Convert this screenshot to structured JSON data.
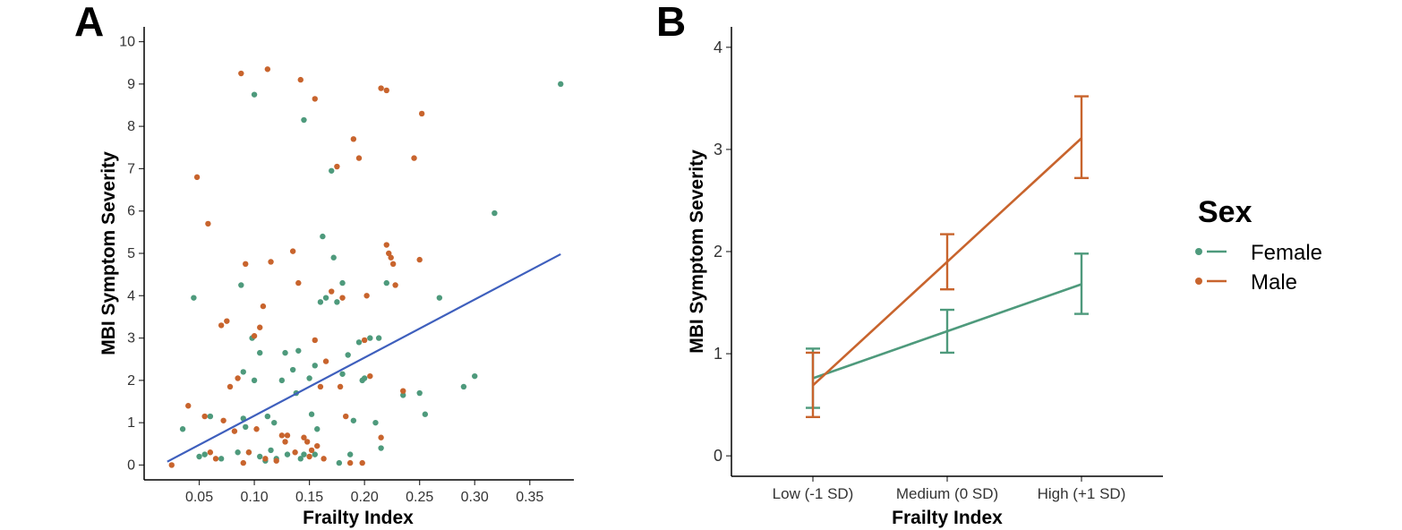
{
  "chart_data": [
    {
      "panel": "A",
      "type": "scatter",
      "xlabel": "Frailty Index",
      "ylabel": "MBI Symptom Severity",
      "xlim": [
        0,
        0.39
      ],
      "ylim": [
        -0.35,
        10.35
      ],
      "xticks": [
        "0.05",
        "0.10",
        "0.15",
        "0.20",
        "0.25",
        "0.30",
        "0.35"
      ],
      "yticks": [
        "0",
        "1",
        "2",
        "3",
        "4",
        "5",
        "6",
        "7",
        "8",
        "9",
        "10"
      ],
      "grid": false,
      "series": [
        {
          "name": "Female",
          "color": "#4e9a7c",
          "points": [
            [
              0.035,
              0.85
            ],
            [
              0.045,
              3.95
            ],
            [
              0.05,
              0.2
            ],
            [
              0.055,
              0.25
            ],
            [
              0.06,
              1.15
            ],
            [
              0.07,
              0.15
            ],
            [
              0.085,
              0.3
            ],
            [
              0.088,
              4.25
            ],
            [
              0.09,
              1.1
            ],
            [
              0.09,
              2.2
            ],
            [
              0.092,
              0.9
            ],
            [
              0.095,
              0.3
            ],
            [
              0.098,
              3.0
            ],
            [
              0.1,
              8.75
            ],
            [
              0.1,
              2.0
            ],
            [
              0.105,
              2.65
            ],
            [
              0.105,
              0.2
            ],
            [
              0.11,
              0.1
            ],
            [
              0.112,
              1.15
            ],
            [
              0.115,
              0.35
            ],
            [
              0.118,
              1.0
            ],
            [
              0.12,
              0.15
            ],
            [
              0.125,
              2.0
            ],
            [
              0.128,
              2.65
            ],
            [
              0.13,
              0.25
            ],
            [
              0.135,
              2.25
            ],
            [
              0.138,
              1.7
            ],
            [
              0.14,
              2.7
            ],
            [
              0.142,
              0.15
            ],
            [
              0.145,
              8.15
            ],
            [
              0.145,
              0.25
            ],
            [
              0.15,
              2.05
            ],
            [
              0.152,
              1.2
            ],
            [
              0.155,
              2.35
            ],
            [
              0.155,
              0.25
            ],
            [
              0.157,
              0.85
            ],
            [
              0.16,
              3.85
            ],
            [
              0.162,
              5.4
            ],
            [
              0.165,
              3.95
            ],
            [
              0.17,
              6.95
            ],
            [
              0.172,
              4.9
            ],
            [
              0.175,
              3.85
            ],
            [
              0.177,
              0.05
            ],
            [
              0.18,
              4.3
            ],
            [
              0.18,
              2.15
            ],
            [
              0.185,
              2.6
            ],
            [
              0.187,
              0.25
            ],
            [
              0.19,
              1.05
            ],
            [
              0.195,
              2.9
            ],
            [
              0.198,
              2.0
            ],
            [
              0.2,
              2.05
            ],
            [
              0.205,
              3.0
            ],
            [
              0.21,
              1.0
            ],
            [
              0.213,
              3.0
            ],
            [
              0.215,
              0.4
            ],
            [
              0.22,
              4.3
            ],
            [
              0.235,
              1.65
            ],
            [
              0.25,
              1.7
            ],
            [
              0.255,
              1.2
            ],
            [
              0.268,
              3.95
            ],
            [
              0.29,
              1.85
            ],
            [
              0.3,
              2.1
            ],
            [
              0.318,
              5.95
            ],
            [
              0.378,
              9.0
            ]
          ]
        },
        {
          "name": "Male",
          "color": "#c8642d",
          "points": [
            [
              0.025,
              0.0
            ],
            [
              0.04,
              1.4
            ],
            [
              0.048,
              6.8
            ],
            [
              0.055,
              1.15
            ],
            [
              0.058,
              5.7
            ],
            [
              0.06,
              0.3
            ],
            [
              0.065,
              0.15
            ],
            [
              0.07,
              3.3
            ],
            [
              0.072,
              1.05
            ],
            [
              0.075,
              3.4
            ],
            [
              0.078,
              1.85
            ],
            [
              0.082,
              0.8
            ],
            [
              0.085,
              2.05
            ],
            [
              0.088,
              9.25
            ],
            [
              0.09,
              0.05
            ],
            [
              0.092,
              4.75
            ],
            [
              0.095,
              0.3
            ],
            [
              0.1,
              3.05
            ],
            [
              0.102,
              0.85
            ],
            [
              0.105,
              3.25
            ],
            [
              0.108,
              3.75
            ],
            [
              0.11,
              0.15
            ],
            [
              0.112,
              9.35
            ],
            [
              0.115,
              4.8
            ],
            [
              0.12,
              0.1
            ],
            [
              0.125,
              0.7
            ],
            [
              0.128,
              0.55
            ],
            [
              0.13,
              0.7
            ],
            [
              0.135,
              5.05
            ],
            [
              0.137,
              0.3
            ],
            [
              0.14,
              4.3
            ],
            [
              0.142,
              9.1
            ],
            [
              0.145,
              0.65
            ],
            [
              0.148,
              0.55
            ],
            [
              0.15,
              0.2
            ],
            [
              0.152,
              0.35
            ],
            [
              0.155,
              8.65
            ],
            [
              0.155,
              2.95
            ],
            [
              0.157,
              0.45
            ],
            [
              0.16,
              1.85
            ],
            [
              0.163,
              0.15
            ],
            [
              0.165,
              2.45
            ],
            [
              0.17,
              4.1
            ],
            [
              0.175,
              7.05
            ],
            [
              0.178,
              1.85
            ],
            [
              0.18,
              3.95
            ],
            [
              0.183,
              1.15
            ],
            [
              0.187,
              0.05
            ],
            [
              0.19,
              7.7
            ],
            [
              0.195,
              7.25
            ],
            [
              0.198,
              0.05
            ],
            [
              0.2,
              2.95
            ],
            [
              0.202,
              4.0
            ],
            [
              0.205,
              2.1
            ],
            [
              0.215,
              0.65
            ],
            [
              0.215,
              8.9
            ],
            [
              0.22,
              8.85
            ],
            [
              0.22,
              5.2
            ],
            [
              0.222,
              5.0
            ],
            [
              0.224,
              4.9
            ],
            [
              0.226,
              4.75
            ],
            [
              0.228,
              4.25
            ],
            [
              0.235,
              1.75
            ],
            [
              0.245,
              7.25
            ],
            [
              0.25,
              4.85
            ],
            [
              0.252,
              8.3
            ]
          ]
        }
      ],
      "fit_line": {
        "color": "#3e5fbd",
        "x": [
          0.021,
          0.378
        ],
        "y": [
          0.08,
          4.98
        ]
      }
    },
    {
      "panel": "B",
      "type": "line",
      "xlabel": "Frailty Index",
      "ylabel": "MBI Symptom Severity",
      "categories": [
        "Low (-1 SD)",
        "Medium (0 SD)",
        "High (+1 SD)"
      ],
      "ylim": [
        -0.2,
        4.2
      ],
      "yticks": [
        "0",
        "1",
        "2",
        "3",
        "4"
      ],
      "grid": false,
      "series": [
        {
          "name": "Female",
          "color": "#4e9a7c",
          "values": [
            0.76,
            1.22,
            1.68
          ],
          "lower": [
            0.47,
            1.01,
            1.39
          ],
          "upper": [
            1.05,
            1.43,
            1.98
          ]
        },
        {
          "name": "Male",
          "color": "#c8642d",
          "values": [
            0.69,
            1.9,
            3.11
          ],
          "lower": [
            0.38,
            1.63,
            2.72
          ],
          "upper": [
            1.01,
            2.17,
            3.52
          ]
        }
      ],
      "legend": {
        "title": "Sex",
        "position": "right",
        "entries": [
          {
            "label": "Female",
            "color": "#4e9a7c"
          },
          {
            "label": "Male",
            "color": "#c8642d"
          }
        ]
      }
    }
  ]
}
